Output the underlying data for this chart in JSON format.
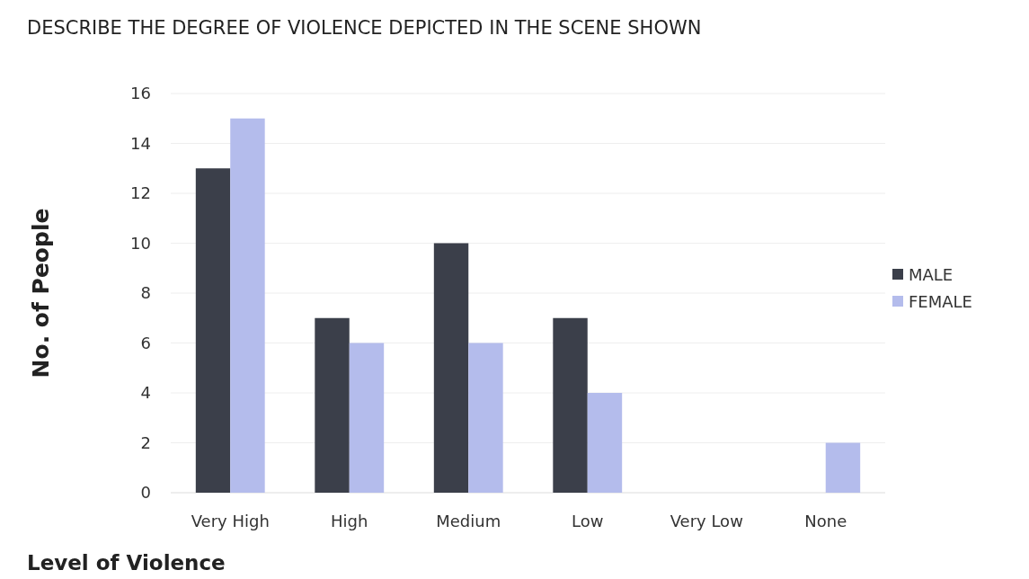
{
  "chart_data": {
    "type": "bar",
    "title": "DESCRIBE THE DEGREE OF VIOLENCE DEPICTED IN THE SCENE SHOWN",
    "xlabel": "Level of Violence",
    "ylabel": "No. of People",
    "categories": [
      "Very High",
      "High",
      "Medium",
      "Low",
      "Very Low",
      "None"
    ],
    "series": [
      {
        "name": "MALE",
        "color": "#3b3f4a",
        "values": [
          13,
          7,
          10,
          7,
          0,
          0
        ]
      },
      {
        "name": "FEMALE",
        "color": "#b4bcec",
        "values": [
          15,
          6,
          6,
          4,
          0,
          2
        ]
      }
    ],
    "ylim": [
      0,
      16
    ],
    "yticks": [
      0,
      2,
      4,
      6,
      8,
      10,
      12,
      14,
      16
    ],
    "grid": "y",
    "legend": "right"
  }
}
